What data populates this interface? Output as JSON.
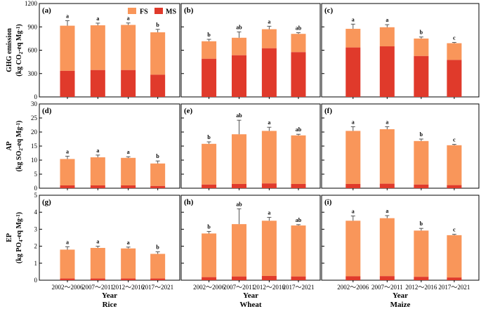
{
  "colors": {
    "fs": "#F9965A",
    "ms": "#E03A2B",
    "axis": "#000000"
  },
  "legend": {
    "fs_label": "FS",
    "ms_label": "MS"
  },
  "column_titles": {
    "year_label": "Year",
    "crops": [
      "Rice",
      "Wheat",
      "Maize"
    ]
  },
  "row_labels": [
    {
      "indicator": "GHG emission",
      "unit_pre": "(kg CO",
      "unit_sub": "2",
      "unit_post": "-eq Mg",
      "unit_sup": "-1",
      "unit_end": ")"
    },
    {
      "indicator": "AP",
      "unit_pre": "(kg SO",
      "unit_sub": "2",
      "unit_post": "-eq Mg",
      "unit_sup": "-1",
      "unit_end": ")"
    },
    {
      "indicator": "EP",
      "unit_pre": "(kg PO",
      "unit_sub": "4",
      "unit_post": "-eq Mg",
      "unit_sup": "-1",
      "unit_end": ")"
    }
  ],
  "chart_data": {
    "type": "bar",
    "stacked": true,
    "categories": [
      "2002～2006",
      "2007～2011",
      "2012～2016",
      "2017～2021"
    ],
    "series_names": [
      "MS",
      "FS"
    ],
    "rows": [
      {
        "ylim": [
          0,
          1200
        ],
        "yticks": [
          0,
          300,
          600,
          900,
          1200
        ]
      },
      {
        "ylim": [
          0,
          30
        ],
        "yticks": [
          0,
          5,
          10,
          15,
          20,
          25,
          30
        ]
      },
      {
        "ylim": [
          0,
          5
        ],
        "yticks": [
          0,
          1,
          2,
          3,
          4,
          5
        ]
      }
    ],
    "panels": [
      {
        "label": "(a)",
        "crop": "Rice",
        "indicator": "GHG emission",
        "ms": [
          335,
          345,
          345,
          285
        ],
        "total": [
          915,
          920,
          925,
          830
        ],
        "err": [
          65,
          28,
          25,
          38
        ],
        "sig": [
          "a",
          "a",
          "a",
          "b"
        ]
      },
      {
        "label": "(b)",
        "crop": "Wheat",
        "indicator": "GHG emission",
        "ms": [
          490,
          535,
          625,
          575
        ],
        "total": [
          715,
          760,
          870,
          810
        ],
        "err": [
          25,
          75,
          38,
          15
        ],
        "sig": [
          "b",
          "ab",
          "a",
          "ab"
        ]
      },
      {
        "label": "(c)",
        "crop": "Maize",
        "indicator": "GHG emission",
        "ms": [
          635,
          650,
          525,
          475
        ],
        "total": [
          875,
          895,
          750,
          690
        ],
        "err": [
          60,
          33,
          20,
          10
        ],
        "sig": [
          "a",
          "a",
          "b",
          "c"
        ]
      },
      {
        "label": "(d)",
        "crop": "Rice",
        "indicator": "AP",
        "ms": [
          1.0,
          1.0,
          1.0,
          0.8
        ],
        "total": [
          10.4,
          11.0,
          10.8,
          8.8
        ],
        "err": [
          1.0,
          0.8,
          0.4,
          0.9
        ],
        "sig": [
          "a",
          "a",
          "a",
          "b"
        ]
      },
      {
        "label": "(e)",
        "crop": "Wheat",
        "indicator": "AP",
        "ms": [
          1.3,
          1.5,
          1.7,
          1.5
        ],
        "total": [
          15.8,
          19.2,
          20.4,
          18.8
        ],
        "err": [
          0.7,
          5.0,
          1.3,
          0.4
        ],
        "sig": [
          "b",
          "ab",
          "a",
          "ab"
        ]
      },
      {
        "label": "(f)",
        "crop": "Maize",
        "indicator": "AP",
        "ms": [
          1.5,
          1.6,
          1.3,
          1.1
        ],
        "total": [
          20.4,
          21.0,
          16.8,
          15.3
        ],
        "err": [
          1.5,
          0.9,
          0.7,
          0.3
        ],
        "sig": [
          "a",
          "a",
          "b",
          "c"
        ]
      },
      {
        "label": "(g)",
        "crop": "Rice",
        "indicator": "EP",
        "ms": [
          0.1,
          0.1,
          0.1,
          0.1
        ],
        "total": [
          1.8,
          1.9,
          1.87,
          1.55
        ],
        "err": [
          0.17,
          0.1,
          0.08,
          0.12
        ],
        "sig": [
          "a",
          "a",
          "a",
          "b"
        ]
      },
      {
        "label": "(h)",
        "crop": "Wheat",
        "indicator": "EP",
        "ms": [
          0.18,
          0.22,
          0.25,
          0.22
        ],
        "total": [
          2.75,
          3.3,
          3.5,
          3.22
        ],
        "err": [
          0.12,
          0.9,
          0.2,
          0.05
        ],
        "sig": [
          "b",
          "ab",
          "a",
          "ab"
        ]
      },
      {
        "label": "(i)",
        "crop": "Maize",
        "indicator": "EP",
        "ms": [
          0.23,
          0.24,
          0.2,
          0.16
        ],
        "total": [
          3.5,
          3.65,
          2.92,
          2.65
        ],
        "err": [
          0.28,
          0.15,
          0.13,
          0.05
        ],
        "sig": [
          "a",
          "a",
          "b",
          "c"
        ]
      }
    ]
  }
}
